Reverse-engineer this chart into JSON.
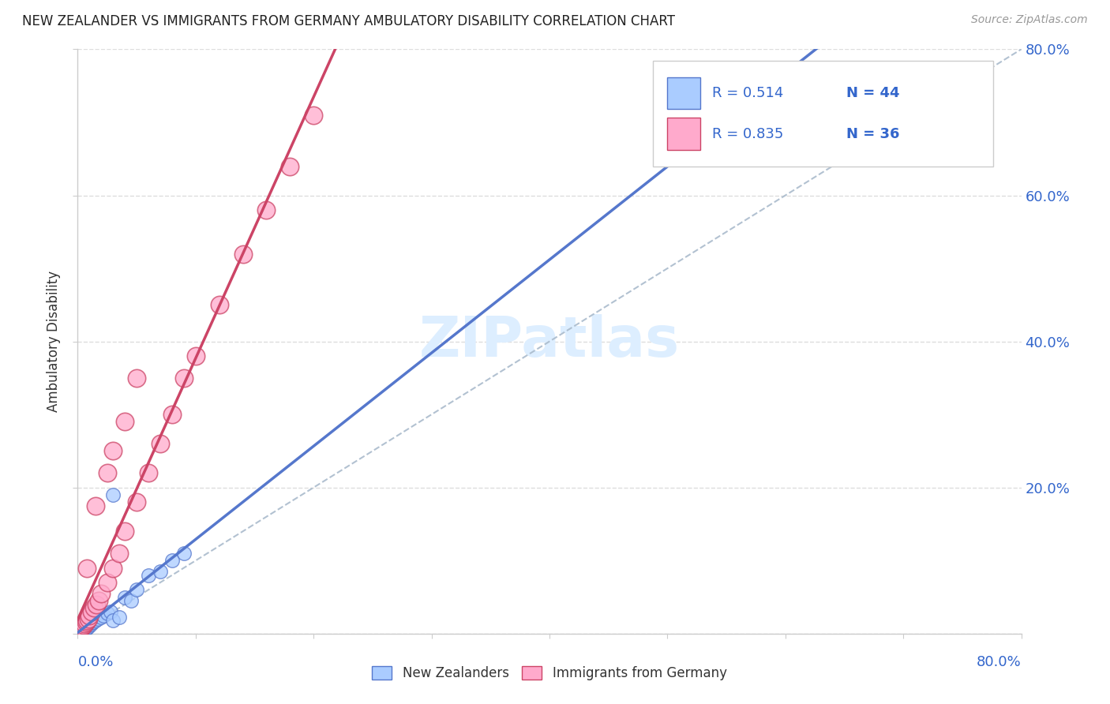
{
  "title": "NEW ZEALANDER VS IMMIGRANTS FROM GERMANY AMBULATORY DISABILITY CORRELATION CHART",
  "source": "Source: ZipAtlas.com",
  "ylabel": "Ambulatory Disability",
  "r_nz": 0.514,
  "n_nz": 44,
  "r_ger": 0.835,
  "n_ger": 36,
  "color_nz": "#aaccff",
  "color_ger": "#ffaacc",
  "color_nz_line": "#5577cc",
  "color_ger_line": "#cc4466",
  "color_text_blue": "#3366cc",
  "color_ref_line": "#aabbcc",
  "watermark_color": "#ddeeff",
  "background_color": "#FFFFFF",
  "grid_color": "#dddddd",
  "xlim": [
    0.0,
    0.8
  ],
  "ylim": [
    0.0,
    0.8
  ],
  "nz_x": [
    0.001,
    0.001,
    0.001,
    0.001,
    0.001,
    0.002,
    0.002,
    0.002,
    0.002,
    0.002,
    0.003,
    0.003,
    0.003,
    0.004,
    0.004,
    0.004,
    0.005,
    0.005,
    0.006,
    0.006,
    0.007,
    0.008,
    0.009,
    0.01,
    0.011,
    0.012,
    0.013,
    0.015,
    0.017,
    0.02,
    0.022,
    0.025,
    0.028,
    0.03,
    0.035,
    0.04,
    0.045,
    0.05,
    0.06,
    0.07,
    0.08,
    0.09,
    0.03,
    0.005
  ],
  "nz_y": [
    0.001,
    0.002,
    0.003,
    0.004,
    0.005,
    0.001,
    0.002,
    0.003,
    0.004,
    0.006,
    0.002,
    0.003,
    0.005,
    0.003,
    0.005,
    0.007,
    0.004,
    0.007,
    0.005,
    0.008,
    0.006,
    0.008,
    0.01,
    0.012,
    0.013,
    0.015,
    0.016,
    0.018,
    0.02,
    0.022,
    0.025,
    0.028,
    0.03,
    0.018,
    0.022,
    0.05,
    0.045,
    0.06,
    0.08,
    0.085,
    0.1,
    0.11,
    0.19,
    0.008
  ],
  "ger_x": [
    0.001,
    0.002,
    0.003,
    0.004,
    0.005,
    0.006,
    0.007,
    0.008,
    0.009,
    0.01,
    0.012,
    0.014,
    0.016,
    0.018,
    0.02,
    0.025,
    0.03,
    0.035,
    0.04,
    0.05,
    0.06,
    0.07,
    0.08,
    0.09,
    0.1,
    0.12,
    0.14,
    0.16,
    0.18,
    0.2,
    0.05,
    0.03,
    0.04,
    0.025,
    0.015,
    0.008
  ],
  "ger_y": [
    0.004,
    0.006,
    0.008,
    0.01,
    0.012,
    0.014,
    0.016,
    0.018,
    0.02,
    0.025,
    0.03,
    0.035,
    0.04,
    0.045,
    0.055,
    0.07,
    0.09,
    0.11,
    0.14,
    0.18,
    0.22,
    0.26,
    0.3,
    0.35,
    0.38,
    0.45,
    0.52,
    0.58,
    0.64,
    0.71,
    0.35,
    0.25,
    0.29,
    0.22,
    0.175,
    0.09
  ]
}
